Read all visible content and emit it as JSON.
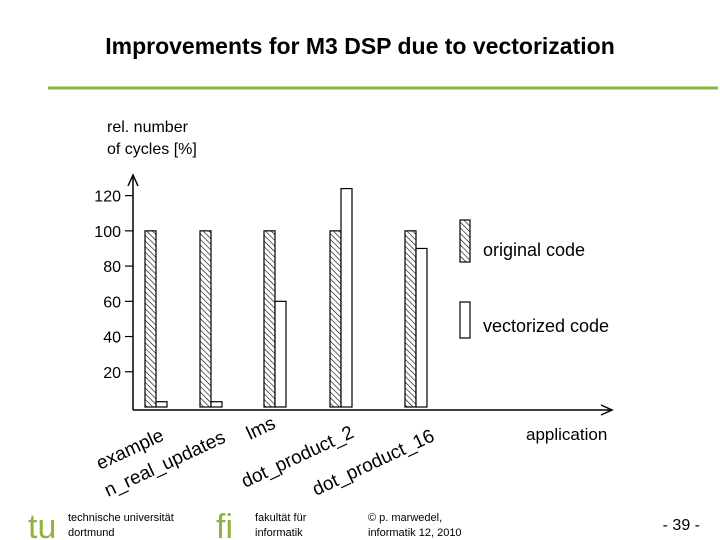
{
  "slide": {
    "title": "Improvements for M3 DSP due to vectorization"
  },
  "chart_data": {
    "type": "bar",
    "y_label_lines": [
      "rel. number",
      "of cycles [%]"
    ],
    "x_label": "application",
    "categories": [
      "example",
      "n_real_updates",
      "lms",
      "dot_product_2",
      "dot_product_16"
    ],
    "series": [
      {
        "name": "original code",
        "color": "#000000",
        "pattern": "hatch",
        "values": [
          100,
          100,
          100,
          100,
          100
        ]
      },
      {
        "name": "vectorized code",
        "color": "#ffffff",
        "values": [
          3,
          3,
          60,
          124,
          90
        ]
      }
    ],
    "ylim": [
      0,
      130
    ],
    "yticks": [
      20,
      40,
      60,
      80,
      100,
      120
    ],
    "legend": "right"
  },
  "footer": {
    "logo_left": "tu",
    "university": [
      "technische universität",
      "dortmund"
    ],
    "logo_right": "fi",
    "faculty": [
      "fakultät für",
      "informatik"
    ],
    "copyright": [
      "© p. marwedel,",
      "informatik 12,  2010"
    ],
    "page": "-  39 -"
  }
}
